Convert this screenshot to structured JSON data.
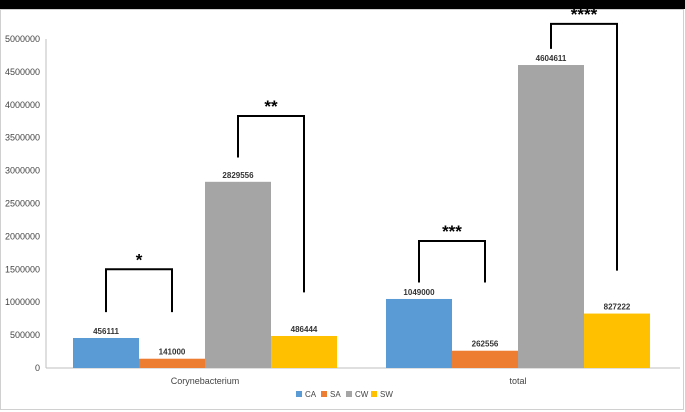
{
  "chart_data": {
    "type": "bar",
    "categories": [
      "Corynebacterium",
      "total"
    ],
    "series": [
      {
        "name": "CA",
        "color": "#5b9bd5",
        "values": [
          456111,
          1049000
        ]
      },
      {
        "name": "SA",
        "color": "#ed7d31",
        "values": [
          141000,
          262556
        ]
      },
      {
        "name": "CW",
        "color": "#a5a5a5",
        "values": [
          2829556,
          4604611
        ]
      },
      {
        "name": "SW",
        "color": "#ffc000",
        "values": [
          486444,
          827222
        ]
      }
    ],
    "yticks": [
      "0",
      "500000",
      "1000000",
      "1500000",
      "2000000",
      "2500000",
      "3000000",
      "3500000",
      "4000000",
      "4500000",
      "5000000"
    ],
    "ylim": [
      0,
      5000000
    ],
    "grid": false,
    "legend_position": "bottom",
    "significance": [
      {
        "category": 0,
        "from_series": "CA",
        "to_series": "SA",
        "stars": "*",
        "bracket_y": 1500000,
        "left_end": 850000,
        "right_end": 850000
      },
      {
        "category": 0,
        "from_series": "CW",
        "to_series": "SW",
        "stars": "**",
        "bracket_y": 3830000,
        "left_end": 3200000,
        "right_end": 1150000
      },
      {
        "category": 1,
        "from_series": "CA",
        "to_series": "SA",
        "stars": "***",
        "bracket_y": 1930000,
        "left_end": 1300000,
        "right_end": 1300000
      },
      {
        "category": 1,
        "from_series": "CW",
        "to_series": "SW",
        "stars": "****",
        "bracket_y": 5230000,
        "left_end": 4850000,
        "right_end": 1480000
      }
    ]
  }
}
